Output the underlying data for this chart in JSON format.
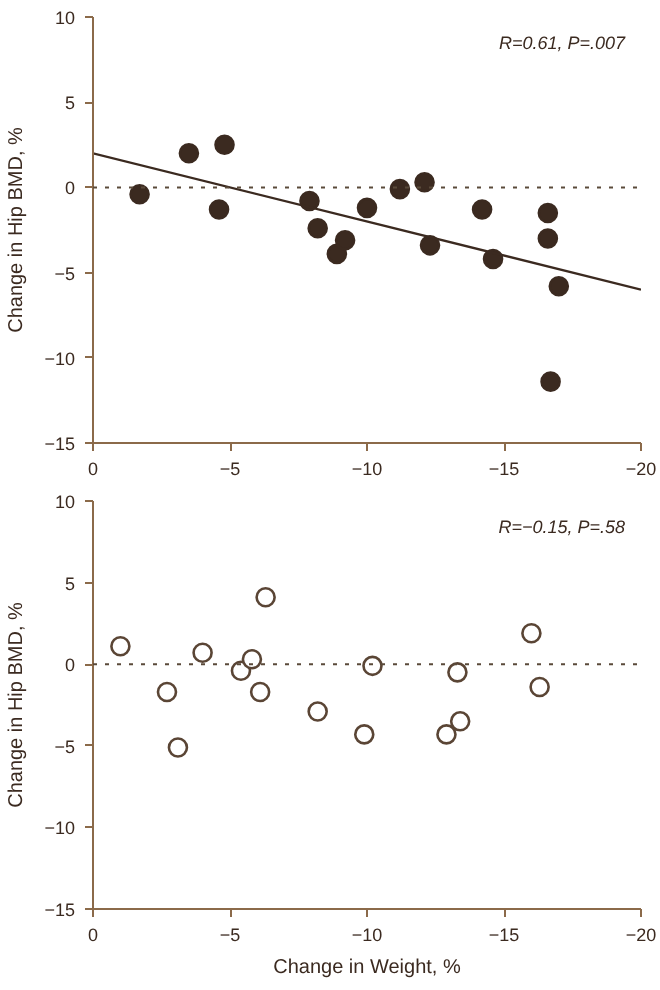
{
  "chart_data": [
    {
      "type": "scatter",
      "ylabel": "Change in Hip BMD, %",
      "xlim": [
        0,
        -20
      ],
      "ylim": [
        -15,
        10
      ],
      "xticks": [
        0,
        {
          "value": -5,
          "label": "−5"
        },
        {
          "value": -10,
          "label": "−10"
        },
        {
          "value": -15,
          "label": "−15"
        },
        {
          "value": -20,
          "label": "−20"
        }
      ],
      "yticks": [
        {
          "value": -15,
          "label": "−15"
        },
        {
          "value": -10,
          "label": "−10"
        },
        {
          "value": -5,
          "label": "−5"
        },
        0,
        5,
        10
      ],
      "grid": false,
      "marker": "circle",
      "annotations": [
        "R=0.61, P=.007"
      ],
      "ref_lines": [
        {
          "axis": "y",
          "value": 0,
          "label": null,
          "color": "#5a4a3a",
          "line_style": "dotted"
        }
      ],
      "series": [
        {
          "color": "#3b2a20",
          "x": [
            -1.7,
            -3.5,
            -4.6,
            -4.8,
            -7.9,
            -8.2,
            -8.9,
            -9.2,
            -10.0,
            -11.2,
            -12.1,
            -12.3,
            -14.2,
            -14.6,
            -16.6,
            -16.6,
            -16.7,
            -17.0
          ],
          "values": [
            -0.4,
            2.0,
            -1.3,
            2.5,
            -0.8,
            -2.4,
            -3.9,
            -3.1,
            -1.2,
            -0.1,
            0.3,
            -3.4,
            -1.3,
            -4.2,
            -1.5,
            -3.0,
            -11.4,
            -5.8
          ]
        },
        {
          "type": "line",
          "color": "#3b2a20",
          "x": [
            0,
            -20
          ],
          "values": [
            2.0,
            -6.0
          ],
          "line_style": "solid",
          "marker": "none"
        }
      ]
    },
    {
      "type": "scatter",
      "xlabel": "Change in Weight, %",
      "ylabel": "Change in Hip BMD, %",
      "xlim": [
        0,
        -20
      ],
      "ylim": [
        -15,
        10
      ],
      "xticks": [
        0,
        {
          "value": -5,
          "label": "−5"
        },
        {
          "value": -10,
          "label": "−10"
        },
        {
          "value": -15,
          "label": "−15"
        },
        {
          "value": -20,
          "label": "−20"
        }
      ],
      "yticks": [
        {
          "value": -15,
          "label": "−15"
        },
        {
          "value": -10,
          "label": "−10"
        },
        {
          "value": -5,
          "label": "−5"
        },
        0,
        5,
        10
      ],
      "grid": false,
      "marker": "circle",
      "annotations": [
        "R=−0.15, P=.58"
      ],
      "ref_lines": [
        {
          "axis": "y",
          "value": 0,
          "label": null,
          "color": "#5a4a3a",
          "line_style": "dotted"
        }
      ],
      "series": [
        {
          "color": "#5a4535",
          "x": [
            -1.0,
            -2.7,
            -3.1,
            -4.0,
            -5.4,
            -5.8,
            -6.1,
            -6.3,
            -8.2,
            -9.9,
            -10.2,
            -12.9,
            -13.3,
            -13.4,
            -16.0,
            -16.3
          ],
          "values": [
            1.1,
            -1.7,
            -5.1,
            0.7,
            -0.4,
            0.3,
            -1.7,
            4.1,
            -2.9,
            -4.3,
            -0.1,
            -4.3,
            -0.5,
            -3.5,
            1.9,
            -1.4
          ]
        }
      ]
    }
  ]
}
